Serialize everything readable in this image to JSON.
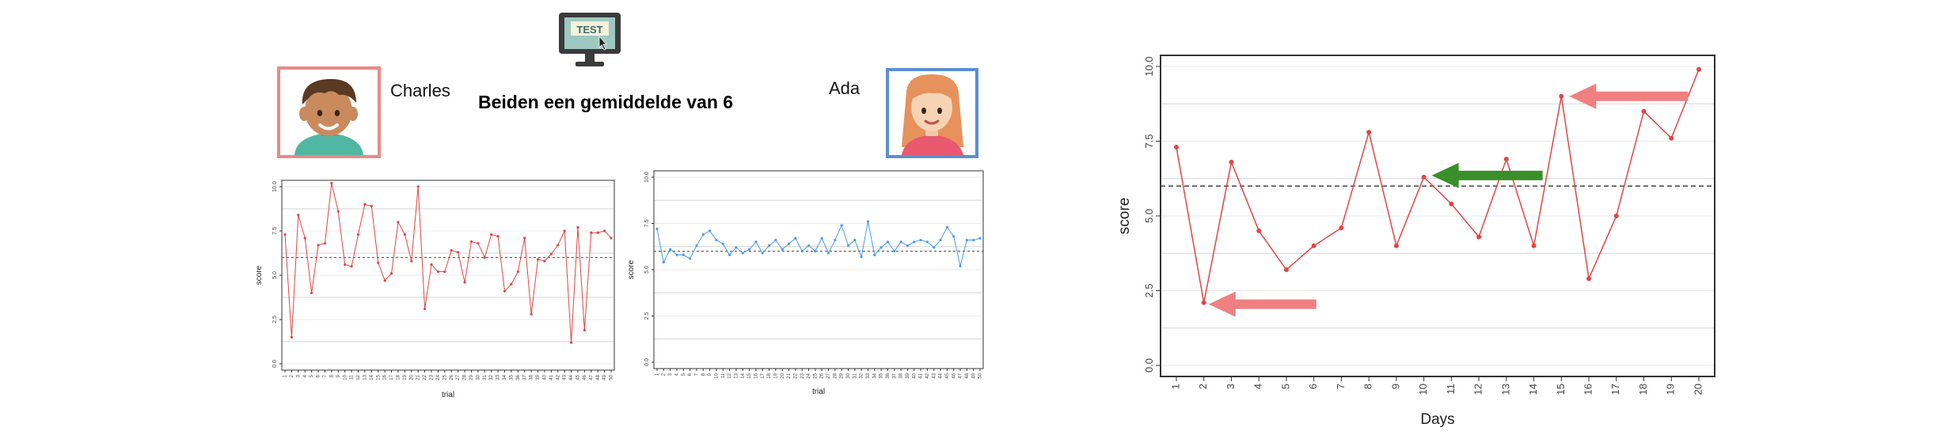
{
  "header": {
    "left_name": "Charles",
    "right_name": "Ada",
    "headline": "Beiden een gemiddelde van 6",
    "test_icon_text": "TEST"
  },
  "colors": {
    "charles_frame": "#e98a86",
    "ada_frame": "#5b8fd0",
    "red_series": "#e04646",
    "blue_series": "#4a9ae6",
    "arrow_red": "#f08080",
    "arrow_green": "#3a8f2a",
    "mean_line": "#444444"
  },
  "icons": [
    "computer-test-icon",
    "boy-avatar-icon",
    "girl-avatar-icon"
  ],
  "chart_data": [
    {
      "type": "line",
      "name": "charles-trials",
      "xlabel": "trial",
      "ylabel": "score",
      "ylim": [
        0,
        10
      ],
      "yticks": [
        0.0,
        2.5,
        5.0,
        7.5,
        10.0
      ],
      "ytick_labels": [
        "0.0",
        "2.5",
        "5.0",
        "7.5",
        "10.0"
      ],
      "mean": 6,
      "x": [
        1,
        2,
        3,
        4,
        5,
        6,
        7,
        8,
        9,
        10,
        11,
        12,
        13,
        14,
        15,
        16,
        17,
        18,
        19,
        20,
        21,
        22,
        23,
        24,
        25,
        26,
        27,
        28,
        29,
        30,
        31,
        32,
        33,
        34,
        35,
        36,
        37,
        38,
        39,
        40,
        41,
        42,
        43,
        44,
        45,
        46,
        47,
        48,
        49,
        50
      ],
      "x_labels": [
        "1",
        "2",
        "3",
        "4",
        "5",
        "6",
        "7",
        "8",
        "9",
        "10",
        "11",
        "12",
        "13",
        "14",
        "15",
        "16",
        "17",
        "18",
        "19",
        "20",
        "21",
        "22",
        "23",
        "24",
        "25",
        "26",
        "27",
        "28",
        "29",
        "30",
        "31",
        "32",
        "33",
        "34",
        "35",
        "36",
        "37",
        "38",
        "39",
        "40",
        "41",
        "42",
        "43",
        "44",
        "45",
        "46",
        "47",
        "48",
        "49",
        "50"
      ],
      "values": [
        7.3,
        1.5,
        8.4,
        7.1,
        4.0,
        6.7,
        6.8,
        10.2,
        8.6,
        5.6,
        5.5,
        7.3,
        9.0,
        8.9,
        5.7,
        4.7,
        5.1,
        8.0,
        7.3,
        5.8,
        10.0,
        3.1,
        5.6,
        5.2,
        5.2,
        6.4,
        6.3,
        4.6,
        6.9,
        6.8,
        6.0,
        7.3,
        7.2,
        4.1,
        4.5,
        5.2,
        7.1,
        2.8,
        5.9,
        5.8,
        6.2,
        6.7,
        7.5,
        1.2,
        7.7,
        1.9,
        7.4,
        7.4,
        7.5,
        7.1
      ],
      "grid": "horizontal",
      "color": "#e04646"
    },
    {
      "type": "line",
      "name": "ada-trials",
      "xlabel": "trial",
      "ylabel": "score",
      "ylim": [
        0,
        10
      ],
      "yticks": [
        0.0,
        2.5,
        5.0,
        7.5,
        10.0
      ],
      "ytick_labels": [
        "0.0",
        "2.5",
        "5.0",
        "7.5",
        "10.0"
      ],
      "mean": 6,
      "x": [
        1,
        2,
        3,
        4,
        5,
        6,
        7,
        8,
        9,
        10,
        11,
        12,
        13,
        14,
        15,
        16,
        17,
        18,
        19,
        20,
        21,
        22,
        23,
        24,
        25,
        26,
        27,
        28,
        29,
        30,
        31,
        32,
        33,
        34,
        35,
        36,
        37,
        38,
        39,
        40,
        41,
        42,
        43,
        44,
        45,
        46,
        47,
        48,
        49,
        50
      ],
      "x_labels": [
        "1",
        "2",
        "3",
        "4",
        "5",
        "6",
        "7",
        "8",
        "9",
        "10",
        "11",
        "12",
        "13",
        "14",
        "15",
        "16",
        "17",
        "18",
        "19",
        "20",
        "21",
        "22",
        "23",
        "24",
        "25",
        "26",
        "27",
        "28",
        "29",
        "30",
        "31",
        "32",
        "33",
        "34",
        "35",
        "36",
        "37",
        "38",
        "39",
        "40",
        "41",
        "42",
        "43",
        "44",
        "45",
        "46",
        "47",
        "48",
        "49",
        "50"
      ],
      "values": [
        7.2,
        5.4,
        6.1,
        5.8,
        5.8,
        5.6,
        6.3,
        6.9,
        7.1,
        6.6,
        6.4,
        5.8,
        6.2,
        5.9,
        6.1,
        6.5,
        5.9,
        6.3,
        6.6,
        6.1,
        6.4,
        6.7,
        6.0,
        6.3,
        6.0,
        6.7,
        5.9,
        6.6,
        7.4,
        6.3,
        6.6,
        5.7,
        7.6,
        5.8,
        6.2,
        6.5,
        6.0,
        6.5,
        6.3,
        6.5,
        6.6,
        6.5,
        6.2,
        6.6,
        7.3,
        6.8,
        5.2,
        6.6,
        6.6,
        6.7
      ],
      "grid": "horizontal",
      "color": "#4a9ae6"
    },
    {
      "type": "line",
      "name": "days-chart",
      "xlabel": "Days",
      "ylabel": "score",
      "ylim": [
        0,
        10
      ],
      "yticks": [
        0.0,
        2.5,
        5.0,
        7.5,
        10.0
      ],
      "ytick_labels": [
        "0.0",
        "2.5",
        "5.0",
        "7.5",
        "10.0"
      ],
      "mean": 6,
      "x": [
        1,
        2,
        3,
        4,
        5,
        6,
        7,
        8,
        9,
        10,
        11,
        12,
        13,
        14,
        15,
        16,
        17,
        18,
        19,
        20
      ],
      "x_labels": [
        "1",
        "2",
        "3",
        "4",
        "5",
        "6",
        "7",
        "8",
        "9",
        "10",
        "11",
        "12",
        "13",
        "14",
        "15",
        "16",
        "17",
        "18",
        "19",
        "20"
      ],
      "values": [
        7.3,
        2.1,
        6.8,
        4.5,
        3.2,
        4.0,
        4.6,
        7.8,
        4.0,
        6.3,
        5.4,
        4.3,
        6.9,
        4.0,
        9.0,
        2.9,
        5.0,
        8.5,
        7.6,
        9.9
      ],
      "grid": "horizontal",
      "color": "#e04646",
      "annotations": [
        {
          "type": "arrow",
          "color": "#f08080",
          "points_to_day": 2
        },
        {
          "type": "arrow",
          "color": "#3a8f2a",
          "points_to_day": 10
        },
        {
          "type": "arrow",
          "color": "#f08080",
          "points_to_day": 15
        }
      ]
    }
  ]
}
